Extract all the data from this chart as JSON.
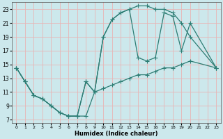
{
  "xlabel": "Humidex (Indice chaleur)",
  "bg_color": "#cce8ec",
  "line_color": "#2d7d74",
  "grid_color": "#e8b4b4",
  "xlim": [
    -0.5,
    23.5
  ],
  "ylim": [
    6.5,
    24.0
  ],
  "xticks": [
    0,
    1,
    2,
    3,
    4,
    5,
    6,
    7,
    8,
    9,
    10,
    11,
    12,
    13,
    14,
    15,
    16,
    17,
    18,
    19,
    20,
    21,
    22,
    23
  ],
  "yticks": [
    7,
    9,
    11,
    13,
    15,
    17,
    19,
    21,
    23
  ],
  "curve1_x": [
    0,
    1,
    2,
    3,
    4,
    5,
    6,
    7,
    8,
    9,
    10,
    11,
    12,
    13,
    14,
    15,
    16,
    17,
    18,
    19,
    20,
    23
  ],
  "curve1_y": [
    14.5,
    12.5,
    10.5,
    10.0,
    9.0,
    8.0,
    7.5,
    7.5,
    7.5,
    11.0,
    11.5,
    12.0,
    12.5,
    13.0,
    13.5,
    13.5,
    14.0,
    14.5,
    14.5,
    15.0,
    15.5,
    14.5
  ],
  "curve2_x": [
    0,
    1,
    2,
    3,
    4,
    5,
    6,
    7,
    8,
    9,
    10,
    11,
    12,
    13,
    14,
    15,
    16,
    17,
    18,
    19,
    20,
    23
  ],
  "curve2_y": [
    14.5,
    12.5,
    10.5,
    10.0,
    9.0,
    8.0,
    7.5,
    7.5,
    12.5,
    11.0,
    19.0,
    21.5,
    22.5,
    23.0,
    23.5,
    23.5,
    23.0,
    23.0,
    22.5,
    21.0,
    19.0,
    14.5
  ],
  "curve3_x": [
    0,
    1,
    2,
    3,
    4,
    5,
    6,
    7,
    8,
    9,
    10,
    11,
    12,
    13,
    14,
    15,
    16,
    17,
    18,
    19,
    20,
    23
  ],
  "curve3_y": [
    14.5,
    12.5,
    10.5,
    10.0,
    9.0,
    8.0,
    7.5,
    7.5,
    12.5,
    11.0,
    19.0,
    21.5,
    22.5,
    23.0,
    16.0,
    15.5,
    16.0,
    22.5,
    22.0,
    17.0,
    21.0,
    14.5
  ]
}
